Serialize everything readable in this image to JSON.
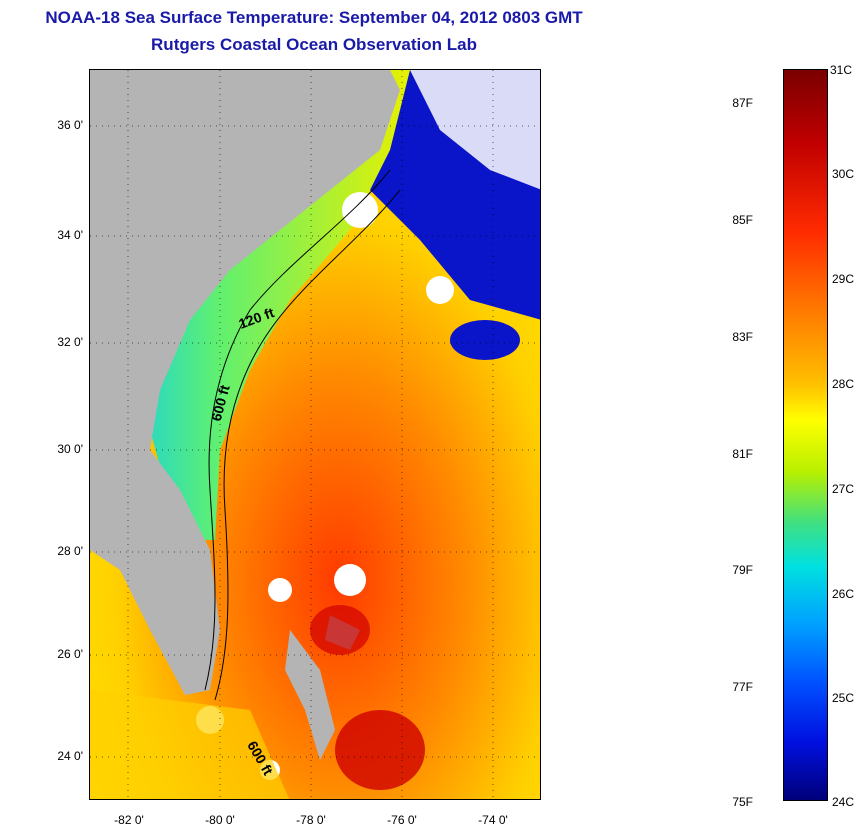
{
  "header": {
    "title": "NOAA-18 Sea Surface Temperature:  September 04, 2012 0803 GMT",
    "subtitle": "Rutgers Coastal Ocean Observation Lab"
  },
  "map": {
    "lat_labels": [
      "36 0'",
      "34 0'",
      "32 0'",
      "30 0'",
      "28 0'",
      "26 0'",
      "24 0'"
    ],
    "lon_labels": [
      "-82 0'",
      "-80 0'",
      "-78 0'",
      "-76 0'",
      "-74 0'"
    ],
    "contour_labels": [
      "120 ft",
      "600 ft",
      "600 ft"
    ],
    "colors": {
      "land": "#b4b4b4",
      "cloud": "#ffffff",
      "cold": "#0010c0",
      "warm": "#ff5a00"
    }
  },
  "colorbar": {
    "fahrenheit_labels": [
      "87F",
      "85F",
      "83F",
      "81F",
      "79F",
      "77F",
      "75F"
    ],
    "celsius_labels": [
      "31C",
      "30C",
      "29C",
      "28C",
      "27C",
      "26C",
      "25C",
      "24C"
    ]
  }
}
